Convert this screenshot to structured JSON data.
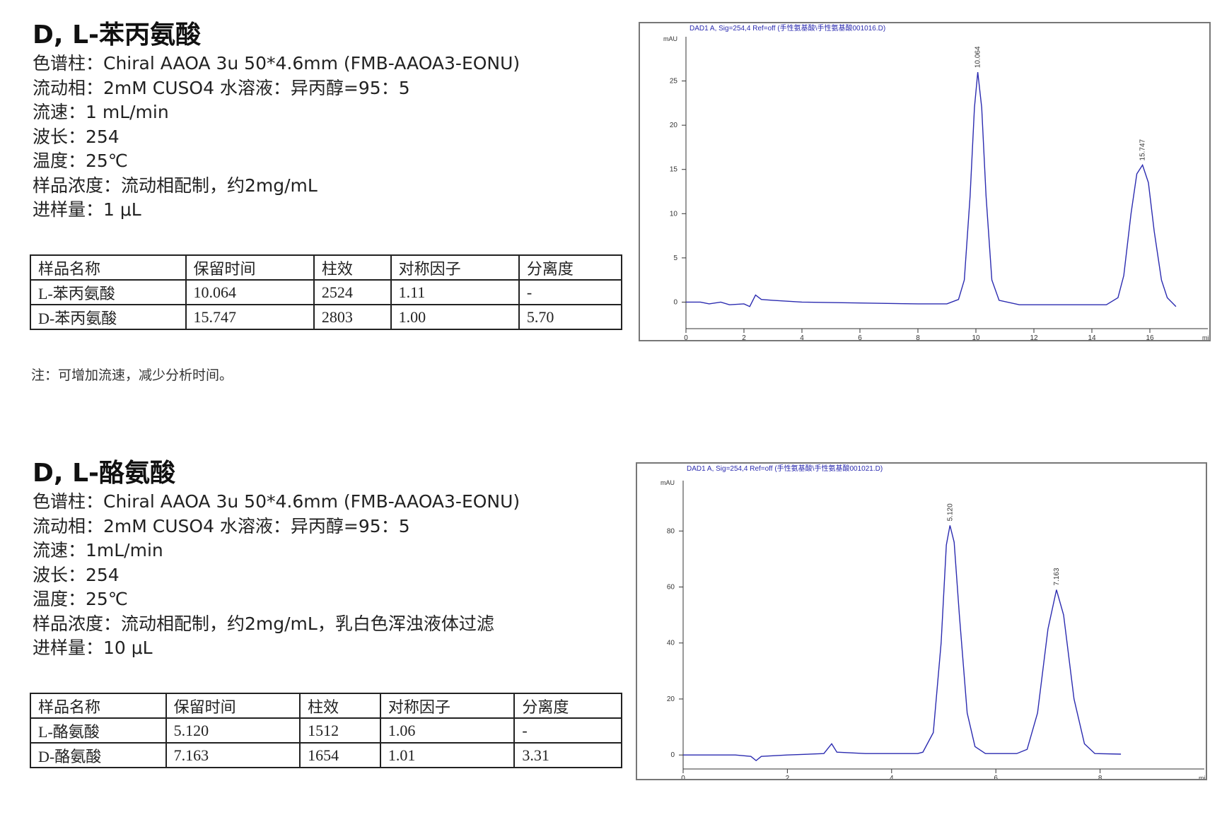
{
  "sections": [
    {
      "title": "D, L-苯丙氨酸",
      "params": [
        "色谱柱：Chiral AAOA 3u 50*4.6mm (FMB-AAOA3-EONU)",
        "流动相：2mM CUSO4 水溶液：异丙醇=95：5",
        "流速：1 mL/min",
        "波长：254",
        "温度：25℃",
        "样品浓度：流动相配制，约2mg/mL",
        "进样量：1 μL"
      ],
      "table": {
        "header": [
          "样品名称",
          "保留时间",
          "柱效",
          "对称因子",
          "分离度"
        ],
        "rows": [
          [
            "L-苯丙氨酸",
            "10.064",
            "2524",
            "1.11",
            "-"
          ],
          [
            "D-苯丙氨酸",
            "15.747",
            "2803",
            "1.00",
            "5.70"
          ]
        ]
      },
      "note": "注：可增加流速，减少分析时间。"
    },
    {
      "title": "D, L-酪氨酸",
      "params": [
        "色谱柱：Chiral AAOA 3u 50*4.6mm (FMB-AAOA3-EONU)",
        "流动相：2mM CUSO4 水溶液：异丙醇=95：5",
        "流速：1mL/min",
        "波长：254",
        "温度：25℃",
        "样品浓度：流动相配制，约2mg/mL，乳白色浑浊液体过滤",
        "进样量：10 μL"
      ],
      "table": {
        "header": [
          "样品名称",
          "保留时间",
          "柱效",
          "对称因子",
          "分离度"
        ],
        "rows": [
          [
            "L-酪氨酸",
            "5.120",
            "1512",
            "1.06",
            "-"
          ],
          [
            "D-酪氨酸",
            "7.163",
            "1654",
            "1.01",
            "3.31"
          ]
        ]
      }
    }
  ],
  "chart_data": [
    {
      "type": "line",
      "title": "DAD1 A, Sig=254,4 Ref=off (手性氨基酸\\手性氨基酸001016.D)",
      "y_label": "mAU",
      "x_label": "min",
      "x": [
        0,
        0.5,
        0.8,
        1.2,
        1.5,
        2.0,
        2.2,
        2.4,
        2.6,
        3,
        4,
        6,
        8,
        9,
        9.4,
        9.6,
        9.8,
        9.95,
        10.064,
        10.2,
        10.35,
        10.55,
        10.8,
        11.5,
        13,
        14.5,
        14.9,
        15.1,
        15.35,
        15.55,
        15.747,
        15.95,
        16.15,
        16.4,
        16.6,
        16.9
      ],
      "series": [
        {
          "color": "#2b2bb0",
          "values": [
            0,
            0,
            -0.2,
            0,
            -0.3,
            -0.2,
            -0.5,
            0.8,
            0.3,
            0.2,
            0,
            -0.1,
            -0.2,
            -0.2,
            0.3,
            2.5,
            12,
            22,
            26,
            22,
            12,
            2.5,
            0.2,
            -0.3,
            -0.3,
            -0.3,
            0.5,
            3,
            10,
            14.5,
            15.5,
            13.5,
            8,
            2.5,
            0.5,
            -0.5
          ]
        }
      ],
      "peaks": [
        {
          "value": 10.064,
          "label": "10.064"
        },
        {
          "value": 15.747,
          "label": "15.747"
        }
      ],
      "xlim": [
        0,
        18
      ],
      "ylim": [
        -3,
        30
      ],
      "xticks": [
        0,
        2,
        4,
        6,
        8,
        10,
        12,
        14,
        16
      ],
      "yticks": [
        0,
        5,
        10,
        15,
        20,
        25
      ]
    },
    {
      "type": "line",
      "title": "DAD1 A, Sig=254,4 Ref=off (手性氨基酸\\手性氨基酸001021.D)",
      "y_label": "mAU",
      "x_label": "min",
      "x": [
        0,
        1,
        1.3,
        1.4,
        1.5,
        2,
        2.7,
        2.85,
        2.95,
        3.5,
        4.5,
        4.6,
        4.8,
        4.95,
        5.05,
        5.12,
        5.2,
        5.3,
        5.45,
        5.6,
        5.8,
        6.4,
        6.6,
        6.8,
        7.0,
        7.163,
        7.3,
        7.5,
        7.7,
        7.9,
        8.4
      ],
      "series": [
        {
          "color": "#2b2bb0",
          "values": [
            0,
            0,
            -0.5,
            -2,
            -0.5,
            0,
            0.5,
            4,
            1,
            0.5,
            0.5,
            1,
            8,
            40,
            75,
            82,
            76,
            50,
            15,
            3,
            0.5,
            0.5,
            2,
            15,
            45,
            59,
            50,
            20,
            4,
            0.5,
            0.3
          ]
        }
      ],
      "peaks": [
        {
          "value": 5.12,
          "label": "5.120"
        },
        {
          "value": 7.163,
          "label": "7.163"
        }
      ],
      "xlim": [
        0,
        10
      ],
      "ylim": [
        -5,
        98
      ],
      "xticks": [
        0,
        2,
        4,
        6,
        8
      ],
      "yticks": [
        0,
        20,
        40,
        60,
        80
      ]
    }
  ]
}
